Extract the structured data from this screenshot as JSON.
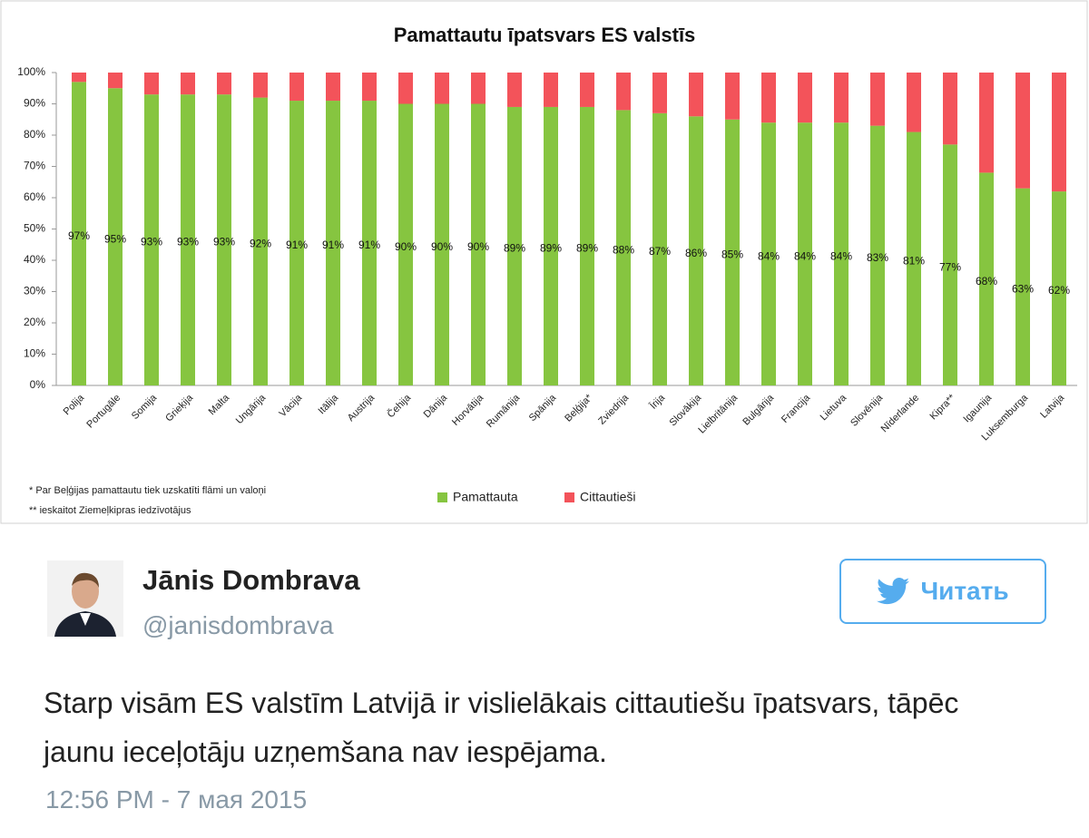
{
  "chart_data": {
    "type": "stacked_bar",
    "title": "Pamattautu īpatsvars ES valstīs",
    "categories": [
      "Polija",
      "Portugāle",
      "Somija",
      "Grieķija",
      "Malta",
      "Ungārija",
      "Vācija",
      "Itālija",
      "Austrija",
      "Čehija",
      "Dānija",
      "Horvātija",
      "Rumānija",
      "Spānija",
      "Beļģija*",
      "Zviedrija",
      "Īrija",
      "Slovākija",
      "Lielbritānija",
      "Bulgārija",
      "Francija",
      "Lietuva",
      "Slovēnija",
      "Nīderlande",
      "Kipra**",
      "Igaunija",
      "Luksemburga",
      "Latvija"
    ],
    "series": [
      {
        "name": "Pamattauta",
        "color": "#86c540",
        "values": [
          97,
          95,
          93,
          93,
          93,
          92,
          91,
          91,
          91,
          90,
          90,
          90,
          89,
          89,
          89,
          88,
          87,
          86,
          85,
          84,
          84,
          84,
          83,
          81,
          77,
          68,
          63,
          62
        ],
        "value_labels": [
          "97%",
          "95%",
          "93%",
          "93%",
          "93%",
          "92%",
          "91%",
          "91%",
          "91%",
          "90%",
          "90%",
          "90%",
          "89%",
          "89%",
          "89%",
          "88%",
          "87%",
          "86%",
          "85%",
          "84%",
          "84%",
          "84%",
          "83%",
          "81%",
          "77%",
          "68%",
          "63%",
          "62%"
        ]
      },
      {
        "name": "Cittautieši",
        "color": "#f3535a",
        "values": [
          3,
          5,
          7,
          7,
          7,
          8,
          9,
          9,
          9,
          10,
          10,
          10,
          11,
          11,
          11,
          12,
          13,
          14,
          15,
          16,
          16,
          16,
          17,
          19,
          23,
          32,
          37,
          38
        ]
      }
    ],
    "ylim": [
      0,
      100
    ],
    "yticks": [
      {
        "value": 0,
        "label": "0%"
      },
      {
        "value": 10,
        "label": "10%"
      },
      {
        "value": 20,
        "label": "20%"
      },
      {
        "value": 30,
        "label": "30%"
      },
      {
        "value": 40,
        "label": "40%"
      },
      {
        "value": 50,
        "label": "50%"
      },
      {
        "value": 60,
        "label": "60%"
      },
      {
        "value": 70,
        "label": "70%"
      },
      {
        "value": 80,
        "label": "80%"
      },
      {
        "value": 90,
        "label": "90%"
      },
      {
        "value": 100,
        "label": "100%"
      }
    ],
    "notes": [
      "* Par Beļģijas pamattautu tiek uzskatīti flāmi un valoņi",
      "** ieskaitot Ziemeļkipras iedzīvotājus"
    ]
  },
  "tweet": {
    "name": "Jānis Dombrava",
    "handle": "@janisdombrava",
    "button": "Читать",
    "text": "Starp visām ES valstīm Latvijā ir vislielākais cittautiešu īpatsvars, tāpēc jaunu ieceļotāju uzņemšana nav iespējama.",
    "time": "12:56 PM - 7 мая 2015"
  }
}
